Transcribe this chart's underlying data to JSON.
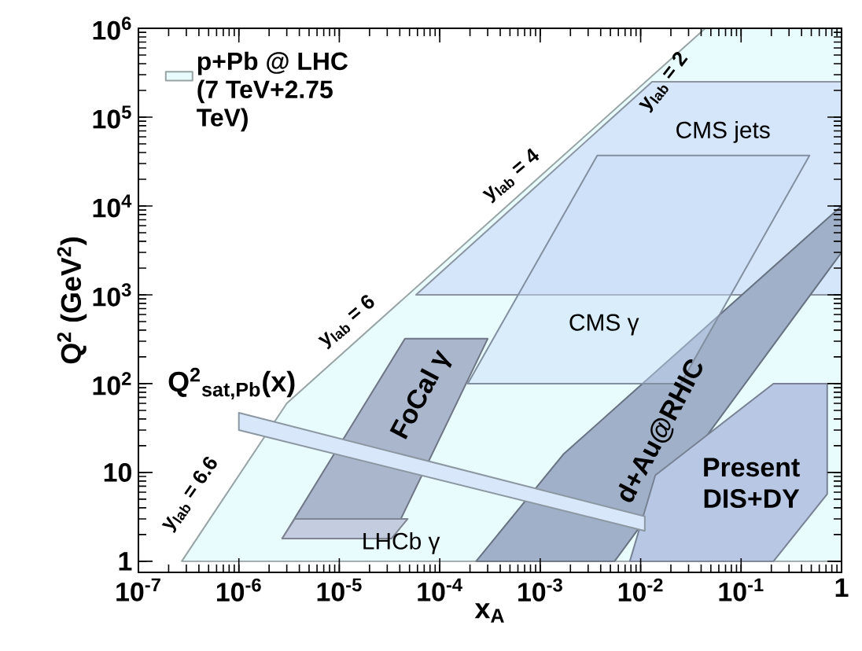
{
  "chart_data": {
    "type": "area",
    "xlabel": "x$_{A}$",
    "ylabel": "Q$^{2}$ (GeV$^{2}$)",
    "log": "xy",
    "legend": "top left",
    "xlim": [
      1e-07,
      1
    ],
    "ylim": [
      0.75,
      1000000
    ],
    "xticks": [
      {
        "value": 1e-07,
        "label": "10$^{-7}$"
      },
      {
        "value": 1e-06,
        "label": "10$^{-6}$"
      },
      {
        "value": 1e-05,
        "label": "10$^{-5}$"
      },
      {
        "value": 0.0001,
        "label": "10$^{-4}$"
      },
      {
        "value": 0.001,
        "label": "10$^{-3}$"
      },
      {
        "value": 0.01,
        "label": "10$^{-2}$"
      },
      {
        "value": 0.1,
        "label": "10$^{-1}$"
      },
      1
    ],
    "yticks": [
      1,
      10,
      {
        "value": 100,
        "label": "10$^{2}$"
      },
      {
        "value": 1000,
        "label": "10$^{3}$"
      },
      {
        "value": 10000,
        "label": "10$^{4}$"
      },
      {
        "value": 100000,
        "label": "10$^{5}$"
      },
      {
        "value": 1000000,
        "label": "10$^{6}$"
      }
    ],
    "series": [
      {
        "name": "p+Pb @ LHC (7 TeV+2.75 TeV)",
        "color": "#e8fbfd",
        "x": [
          2.7e-07,
          3e-06,
          0.044,
          1,
          1
        ],
        "values": [
          1,
          60,
          1000000,
          1000000,
          1
        ]
      },
      {
        "name": "CMS jets",
        "color": "#d6e6fa",
        "x": [
          5.8e-05,
          0.013,
          1,
          1
        ],
        "values": [
          1000,
          250000,
          250000,
          1000
        ]
      },
      {
        "name": "d+Au@RHIC",
        "color": "#9fb0c8",
        "x": [
          0.00023,
          0.0017,
          1,
          1,
          0.0055
        ],
        "values": [
          1,
          16,
          10000,
          3000,
          1
        ]
      },
      {
        "name": "Present DIS+DY",
        "color": "#b8c8e4",
        "x": [
          0.0078,
          0.014,
          0.21,
          0.72,
          0.72,
          0.21
        ],
        "values": [
          1,
          9.3,
          100,
          100,
          5.7,
          1
        ]
      },
      {
        "name": "CMS γ",
        "color": "#c8dcf6",
        "x": [
          0.00019,
          0.0037,
          0.48,
          0.025
        ],
        "values": [
          100,
          37000,
          37000,
          100
        ]
      },
      {
        "name": "FoCal γ",
        "color": "#a9b6cc",
        "x": [
          2.7e-06,
          4.5e-05,
          0.0003,
          3.3e-05
        ],
        "values": [
          1.8,
          320,
          320,
          1.8
        ]
      },
      {
        "name": "LHCb γ",
        "color": "#c4cce0",
        "x": [
          2.7e-06,
          3.6e-06,
          4.8e-05,
          3.3e-05
        ],
        "values": [
          1.8,
          3,
          3,
          1.8
        ]
      },
      {
        "name": "Q$^{2}$$_{sat,Pb}$(x)",
        "color": "#d8e8fa",
        "x": [
          1e-06,
          1e-06,
          0.011,
          0.011
        ],
        "values": [
          30,
          47,
          3.2,
          2.2
        ]
      }
    ],
    "annotations": [
      "y$_{lab}$ = 2",
      "y$_{lab}$ = 4",
      "y$_{lab}$ = 6",
      "y$_{lab}$ = 6.6"
    ]
  }
}
